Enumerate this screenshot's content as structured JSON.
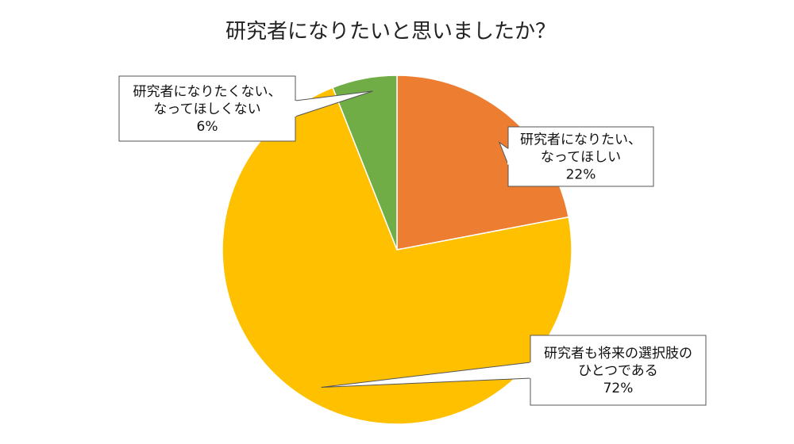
{
  "chart_data": {
    "type": "pie",
    "title": "研究者になりたいと思いましたか？",
    "start_angle_deg": 0,
    "direction": "clockwise",
    "slices": [
      {
        "label_lines": [
          "研究者になりたい、",
          "なってほしい"
        ],
        "value": 22,
        "value_label": "22%",
        "color": "#ED7D31"
      },
      {
        "label_lines": [
          "研究者も将来の選択肢の",
          "ひとつである"
        ],
        "value": 72,
        "value_label": "72%",
        "color": "#FFC000"
      },
      {
        "label_lines": [
          "研究者になりたくない、",
          "なってほしくない"
        ],
        "value": 6,
        "value_label": "6%",
        "color": "#70AD47"
      }
    ]
  }
}
